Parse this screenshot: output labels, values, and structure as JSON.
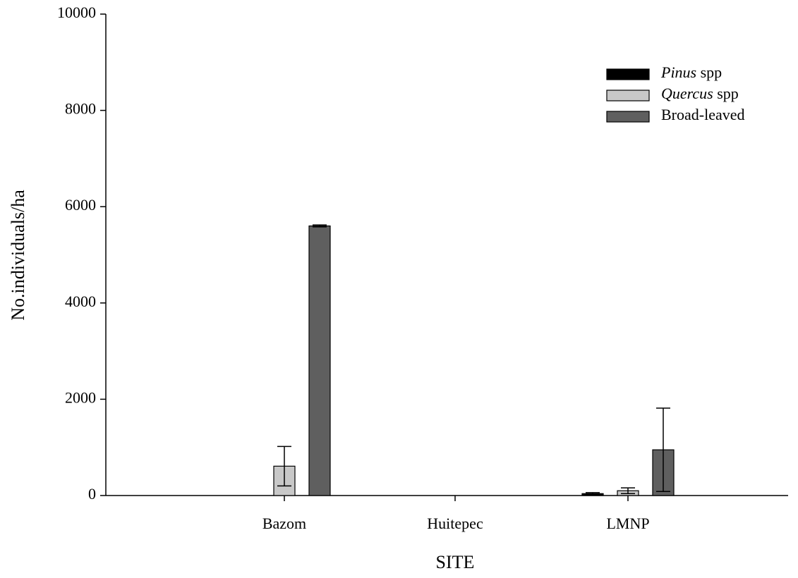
{
  "chart_data": {
    "type": "bar",
    "x_label": "SITE",
    "y_label": "No.individuals/ha",
    "categories": [
      "Bazom",
      "Huitepec",
      "LMNP"
    ],
    "series": [
      {
        "name": "Pinus spp",
        "color": "#000000",
        "values": [
          0,
          0,
          40
        ],
        "errors": [
          0,
          0,
          20
        ]
      },
      {
        "name": "Quercus spp",
        "color": "#c8c8c8",
        "values": [
          610,
          0,
          100
        ],
        "errors": [
          410,
          0,
          60
        ]
      },
      {
        "name": "Broad-leaved",
        "color": "#5f5f5f",
        "values": [
          5600,
          0,
          950
        ],
        "errors": [
          20,
          0,
          865
        ]
      }
    ],
    "ylim": [
      0,
      10000
    ],
    "yticks": [
      0,
      2000,
      4000,
      6000,
      8000,
      10000
    ],
    "legend": "upper right"
  }
}
